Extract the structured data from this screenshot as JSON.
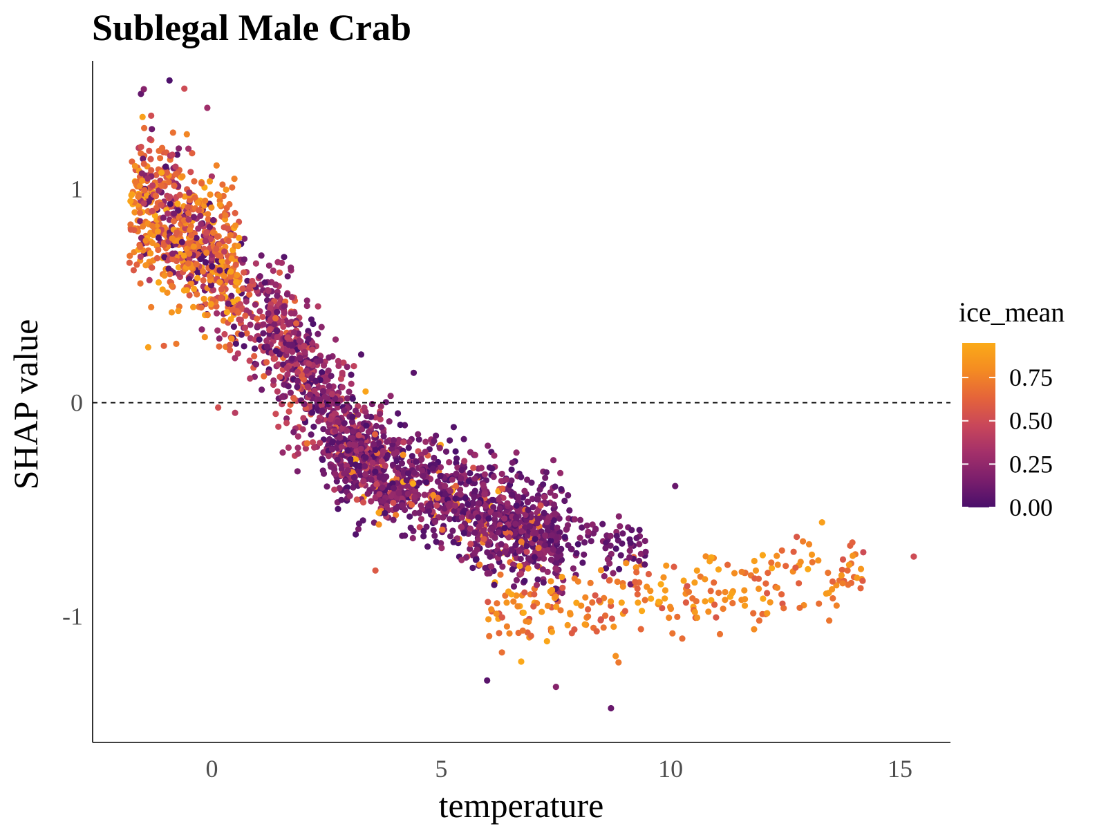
{
  "chart_data": {
    "type": "scatter",
    "title": "Sublegal Male Crab",
    "xlabel": "temperature",
    "ylabel": "SHAP value",
    "xlim": [
      -2.6,
      16.1
    ],
    "ylim": [
      -1.59,
      1.6
    ],
    "x_ticks": [
      {
        "value": 0,
        "label": "0"
      },
      {
        "value": 5,
        "label": "5"
      },
      {
        "value": 10,
        "label": "10"
      },
      {
        "value": 15,
        "label": "15"
      }
    ],
    "y_ticks": [
      {
        "value": 1,
        "label": "1"
      },
      {
        "value": 0,
        "label": "0"
      },
      {
        "value": -1,
        "label": "-1"
      }
    ],
    "reference_line": {
      "y": 0,
      "style": "dashed",
      "color": "#000000"
    },
    "grid": false,
    "color_scale": {
      "name": "ice_mean",
      "palette": "inferno",
      "colors": [
        "#4a0f6b",
        "#7a1e6c",
        "#a3306a",
        "#c9475a",
        "#e5643a",
        "#f48b22",
        "#fbaa18"
      ],
      "range": [
        0,
        0.95
      ],
      "ticks": [
        {
          "value": 0.75,
          "label": "0.75"
        },
        {
          "value": 0.5,
          "label": "0.50"
        },
        {
          "value": 0.25,
          "label": "0.25"
        },
        {
          "value": 0.0,
          "label": "0.00"
        }
      ],
      "legend_position": "right"
    },
    "point_groups": [
      {
        "description": "cold, high ice",
        "x_range": [
          -1.8,
          0.6
        ],
        "y_center": 0.78,
        "y_spread": 0.32,
        "ice": [
          0.55,
          0.95
        ],
        "n": 420
      },
      {
        "description": "cold, mixed ice",
        "x_range": [
          -1.6,
          2.2
        ],
        "y_center": 0.55,
        "y_spread": 0.3,
        "ice": [
          0.0,
          0.7
        ],
        "n": 520
      },
      {
        "description": "transition",
        "x_range": [
          1.2,
          3.8
        ],
        "y_center": 0.05,
        "y_spread": 0.25,
        "ice": [
          0.0,
          0.45
        ],
        "n": 420
      },
      {
        "description": "warm, low ice",
        "x_range": [
          2.4,
          7.6
        ],
        "y_center": -0.42,
        "y_spread": 0.22,
        "ice": [
          0.0,
          0.3
        ],
        "n": 1000
      },
      {
        "description": "warm, scattered ice",
        "x_range": [
          2.6,
          7.2
        ],
        "y_center": -0.45,
        "y_spread": 0.22,
        "ice": [
          0.35,
          0.95
        ],
        "n": 150
      },
      {
        "description": "hot, high ice tail",
        "x_range": [
          6.0,
          14.2
        ],
        "y_center": -0.9,
        "y_spread": 0.17,
        "ice": [
          0.55,
          0.95
        ],
        "n": 260
      },
      {
        "description": "hot, low ice tail",
        "x_range": [
          6.0,
          9.5
        ],
        "y_center": -0.62,
        "y_spread": 0.18,
        "ice": [
          0.0,
          0.25
        ],
        "n": 160
      }
    ],
    "outliers": [
      {
        "x": -0.6,
        "y": 1.47,
        "ice": 0.5
      },
      {
        "x": -0.1,
        "y": 1.38,
        "ice": 0.3
      },
      {
        "x": 4.4,
        "y": 0.14,
        "ice": 0.05
      },
      {
        "x": 8.7,
        "y": -1.43,
        "ice": 0.1
      },
      {
        "x": 15.3,
        "y": -0.72,
        "ice": 0.5
      },
      {
        "x": 7.5,
        "y": -1.33,
        "ice": 0.2
      },
      {
        "x": 10.1,
        "y": -0.39,
        "ice": 0.1
      },
      {
        "x": 13.3,
        "y": -0.56,
        "ice": 0.9
      },
      {
        "x": 14.2,
        "y": -0.7,
        "ice": 0.5
      },
      {
        "x": 6.0,
        "y": -1.3,
        "ice": 0.05
      }
    ]
  }
}
